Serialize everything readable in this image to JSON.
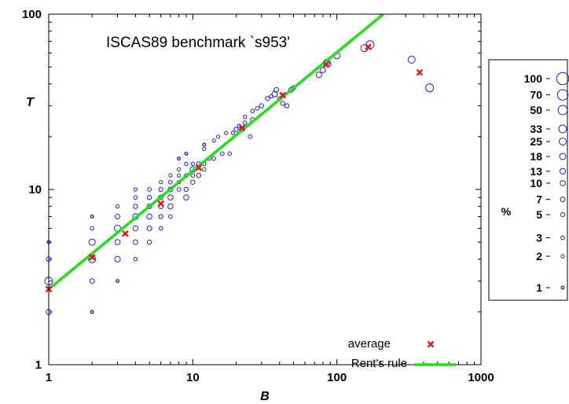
{
  "chart_data": {
    "type": "scatter",
    "title": "ISCAS89 benchmark `s953'",
    "xlabel": "B",
    "ylabel": "T",
    "xscale": "log",
    "yscale": "log",
    "xlim": [
      1,
      1000
    ],
    "ylim": [
      1,
      100
    ],
    "x_ticks": [
      "1",
      "10",
      "100",
      "1000"
    ],
    "y_ticks": [
      "1",
      "10",
      "100"
    ],
    "colors": {
      "points": "#1f1fd6",
      "average": "#e8141c",
      "rent": "#22e01a"
    },
    "series": [
      {
        "name": "points",
        "marker": "circle",
        "points": [
          [
            1,
            2,
            10
          ],
          [
            1,
            3,
            33
          ],
          [
            1,
            4,
            7
          ],
          [
            1,
            5,
            1
          ],
          [
            2,
            2,
            1
          ],
          [
            2,
            3,
            7
          ],
          [
            2,
            4,
            25
          ],
          [
            2,
            5,
            18
          ],
          [
            2,
            6,
            3
          ],
          [
            2,
            7,
            1
          ],
          [
            3,
            3,
            1
          ],
          [
            3,
            4,
            13
          ],
          [
            3,
            5,
            10
          ],
          [
            3,
            6,
            18
          ],
          [
            3,
            7,
            7
          ],
          [
            3,
            8,
            2
          ],
          [
            4,
            4,
            3
          ],
          [
            4,
            5,
            7
          ],
          [
            4,
            6,
            10
          ],
          [
            4,
            7,
            13
          ],
          [
            4,
            8,
            5
          ],
          [
            4,
            9,
            3
          ],
          [
            4,
            10,
            2
          ],
          [
            5,
            5,
            5
          ],
          [
            5,
            6,
            7
          ],
          [
            5,
            7,
            10
          ],
          [
            5,
            8,
            7
          ],
          [
            5,
            9,
            5
          ],
          [
            5,
            10,
            3
          ],
          [
            6,
            6,
            3
          ],
          [
            6,
            7,
            5
          ],
          [
            6,
            8,
            7
          ],
          [
            6,
            9,
            7
          ],
          [
            6,
            10,
            5
          ],
          [
            6,
            11,
            2
          ],
          [
            7,
            7,
            3
          ],
          [
            7,
            8,
            10
          ],
          [
            7,
            9,
            10
          ],
          [
            7,
            10,
            7
          ],
          [
            7,
            11,
            3
          ],
          [
            7,
            12,
            2
          ],
          [
            8,
            10,
            3
          ],
          [
            8,
            11,
            2
          ],
          [
            8,
            12,
            2
          ],
          [
            8,
            13,
            2
          ],
          [
            8,
            15,
            1
          ],
          [
            9,
            9,
            10
          ],
          [
            9,
            10,
            5
          ],
          [
            9,
            12,
            3
          ],
          [
            9,
            14,
            2
          ],
          [
            9,
            16,
            1
          ],
          [
            10,
            11,
            5
          ],
          [
            10,
            12,
            3
          ],
          [
            10,
            13,
            13
          ],
          [
            10,
            14,
            2
          ],
          [
            11,
            12,
            5
          ],
          [
            11,
            14,
            5
          ],
          [
            12,
            13,
            3
          ],
          [
            12,
            14,
            2
          ],
          [
            12,
            17,
            2
          ],
          [
            12,
            18,
            1
          ],
          [
            13,
            15,
            3
          ],
          [
            14,
            15,
            3
          ],
          [
            14,
            19,
            2
          ],
          [
            15,
            20,
            2
          ],
          [
            16,
            16,
            3
          ],
          [
            17,
            21,
            2
          ],
          [
            18,
            16,
            3
          ],
          [
            19,
            21,
            2
          ],
          [
            20,
            22,
            5
          ],
          [
            21,
            23,
            3
          ],
          [
            22,
            22,
            7
          ],
          [
            23,
            24,
            3
          ],
          [
            23,
            26,
            2
          ],
          [
            25,
            20,
            3
          ],
          [
            26,
            25,
            5
          ],
          [
            26,
            28,
            3
          ],
          [
            28,
            29,
            3
          ],
          [
            30,
            30,
            5
          ],
          [
            33,
            33,
            5
          ],
          [
            35,
            34,
            3
          ],
          [
            37,
            35,
            13
          ],
          [
            38,
            37,
            7
          ],
          [
            40,
            33,
            3
          ],
          [
            42,
            31,
            5
          ],
          [
            45,
            30,
            5
          ],
          [
            48,
            37,
            7
          ],
          [
            50,
            38,
            5
          ],
          [
            75,
            45,
            13
          ],
          [
            80,
            48,
            10
          ],
          [
            85,
            53,
            18
          ],
          [
            87,
            52,
            13
          ],
          [
            100,
            58,
            18
          ],
          [
            155,
            64,
            25
          ],
          [
            170,
            67,
            33
          ],
          [
            330,
            55,
            25
          ],
          [
            440,
            38,
            33
          ]
        ]
      },
      {
        "name": "average",
        "marker": "x",
        "points": [
          [
            1,
            2.7
          ],
          [
            2,
            4.1
          ],
          [
            3.4,
            5.6
          ],
          [
            6,
            8.3
          ],
          [
            11,
            13.3
          ],
          [
            22,
            22.5
          ],
          [
            42,
            34.5
          ],
          [
            84,
            51.5
          ],
          [
            165,
            65
          ],
          [
            375,
            46.5
          ]
        ]
      },
      {
        "name": "Rent's rule",
        "type": "line",
        "x": [
          1,
          210
        ],
        "y": [
          2.7,
          100
        ]
      }
    ],
    "legend": {
      "placement": "bottom-right",
      "entries": [
        {
          "label": "average",
          "marker": "x"
        },
        {
          "label": "Rent's rule",
          "marker": "line"
        }
      ]
    },
    "size_legend": {
      "placement": "right",
      "label": "%",
      "levels": [
        "100",
        "70",
        "50",
        "33",
        "25",
        "18",
        "13",
        "10",
        "7",
        "5",
        "3",
        "2",
        "1"
      ],
      "values": [
        100,
        70,
        50,
        33,
        25,
        18,
        13,
        10,
        7,
        5,
        3,
        2,
        1
      ]
    }
  }
}
